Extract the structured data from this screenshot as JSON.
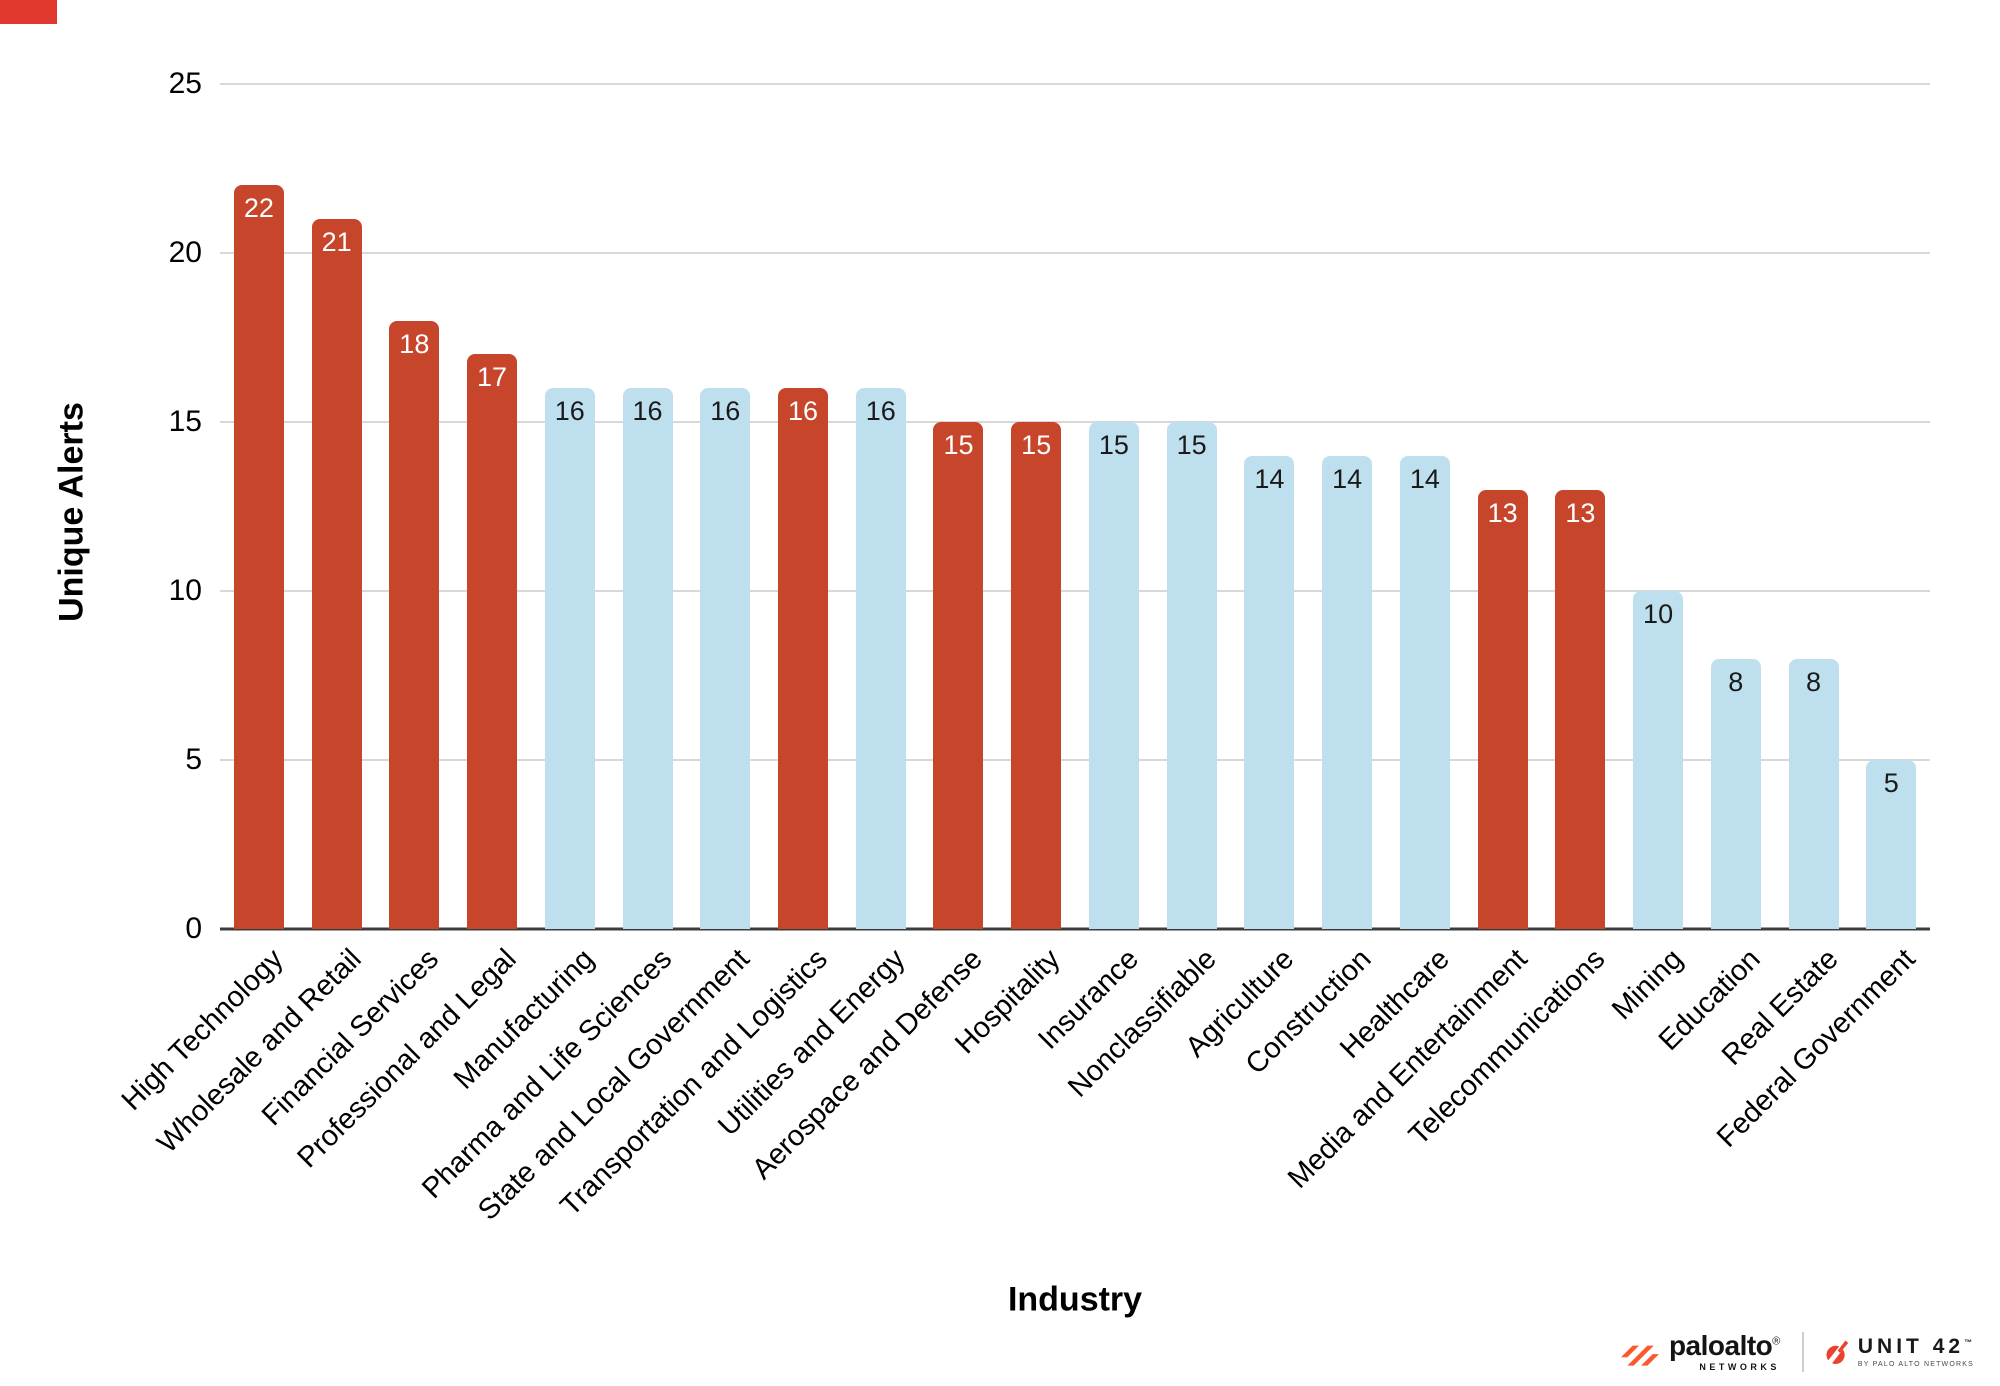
{
  "chart_data": {
    "type": "bar",
    "title": "",
    "xlabel": "Industry",
    "ylabel": "Unique Alerts",
    "ylim": [
      0,
      25
    ],
    "yticks": [
      0,
      5,
      10,
      15,
      20,
      25
    ],
    "grid": true,
    "legend": "none",
    "categories": [
      "High Technology",
      "Wholesale and Retail",
      "Financial Services",
      "Professional and Legal",
      "Manufacturing",
      "Pharma and Life Sciences",
      "State and Local Government",
      "Transportation and Logistics",
      "Utilities and Energy",
      "Aerospace and Defense",
      "Hospitality",
      "Insurance",
      "Nonclassifiable",
      "Agriculture",
      "Construction",
      "Healthcare",
      "Media and Entertainment",
      "Telecommunications",
      "Mining",
      "Education",
      "Real Estate",
      "Federal Government"
    ],
    "values": [
      22,
      21,
      18,
      17,
      16,
      16,
      16,
      16,
      16,
      15,
      15,
      15,
      15,
      14,
      14,
      14,
      13,
      13,
      10,
      8,
      8,
      5
    ],
    "bar_colors": [
      "red",
      "red",
      "red",
      "red",
      "blue",
      "blue",
      "blue",
      "red",
      "blue",
      "red",
      "red",
      "blue",
      "blue",
      "blue",
      "blue",
      "blue",
      "red",
      "red",
      "blue",
      "blue",
      "blue",
      "blue"
    ],
    "series_colors": {
      "red": "#C7452A",
      "blue": "#BEE0EE"
    },
    "value_label_colors": {
      "red": "#ffffff",
      "blue": "#1a1a1a"
    }
  },
  "decor": {
    "corner_mark_color": "#E1382D"
  },
  "branding": {
    "paloalto": {
      "wordmark": "paloalto",
      "registered": "®",
      "subtext": "NETWORKS",
      "brand_orange": "#FA582D"
    },
    "unit42": {
      "wordmark": "UNIT 42",
      "trademark": "™",
      "subtext": "BY PALO ALTO NETWORKS",
      "brand_orange": "#E8432E"
    }
  }
}
